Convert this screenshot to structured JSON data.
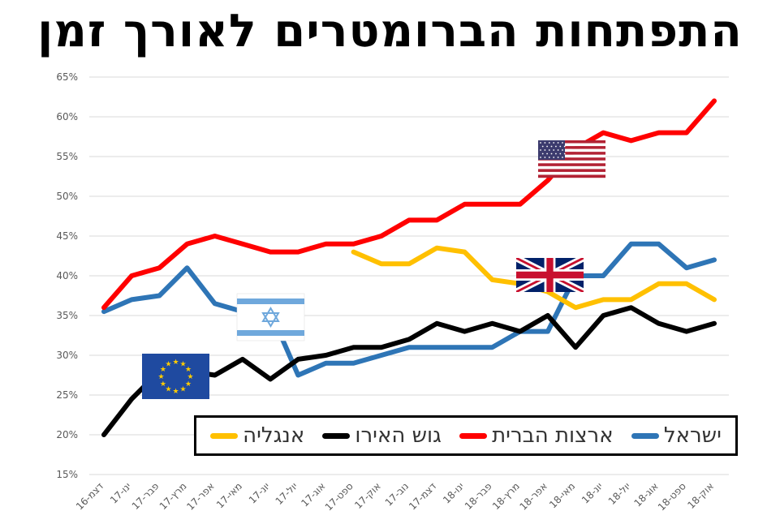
{
  "title": "התפתחות הברומטרים לאורך זמן",
  "chart_data": {
    "type": "line",
    "x": [
      "דצמ-16",
      "ינו-17",
      "פבר-17",
      "מרץ-17",
      "אפר-17",
      "מאי-17",
      "יונ-17",
      "יול-17",
      "אוג-17",
      "ספט-17",
      "אוק-17",
      "נוב-17",
      "דצמ-17",
      "ינו-18",
      "פבר-18",
      "מרץ-18",
      "אפר-18",
      "מאי-18",
      "יונ-18",
      "יול-18",
      "אוג-18",
      "ספט-18",
      "אוק-18"
    ],
    "y_ticks": [
      "15%",
      "20%",
      "25%",
      "30%",
      "35%",
      "40%",
      "45%",
      "50%",
      "55%",
      "60%",
      "65%"
    ],
    "ylim": [
      15,
      65
    ],
    "grid": true,
    "legend_position": "bottom-right",
    "series": [
      {
        "name": "ישראל",
        "color": "#2E75B6",
        "values": [
          35.5,
          37,
          37.5,
          41,
          36.5,
          35.5,
          35.5,
          27.5,
          29,
          29,
          30,
          31,
          31,
          31,
          31,
          33,
          33,
          40,
          40,
          44,
          44,
          41,
          42
        ]
      },
      {
        "name": "ארצות הברית",
        "color": "#FF0000",
        "values": [
          36,
          40,
          41,
          44,
          45,
          44,
          43,
          43,
          44,
          44,
          45,
          47,
          47,
          49,
          49,
          49,
          52,
          56,
          58,
          57,
          58,
          58,
          62
        ]
      },
      {
        "name": "גוש האירו",
        "color": "#000000",
        "values": [
          20,
          24.5,
          28,
          28,
          27.5,
          29.5,
          27,
          29.5,
          30,
          31,
          31,
          32,
          34,
          33,
          34,
          33,
          35,
          31,
          35,
          36,
          34,
          33,
          34
        ]
      },
      {
        "name": "אנגליה",
        "color": "#FFC000",
        "values": [
          null,
          null,
          null,
          null,
          null,
          null,
          null,
          null,
          null,
          43,
          41.5,
          41.5,
          43.5,
          43,
          39.5,
          39,
          38,
          36,
          37,
          37,
          39,
          39,
          37
        ]
      }
    ]
  }
}
